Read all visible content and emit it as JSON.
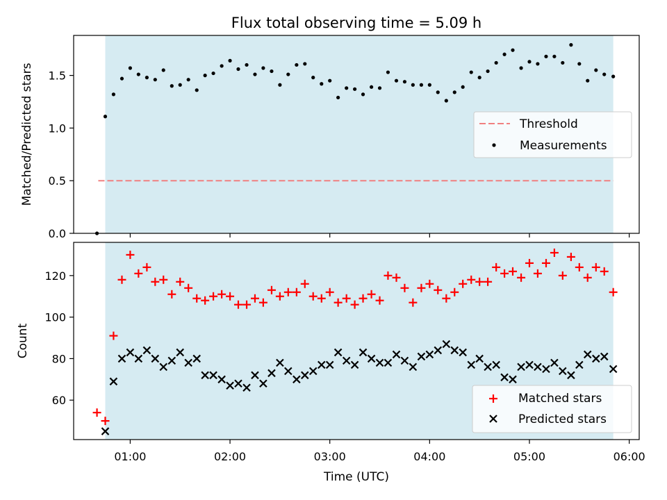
{
  "chart_data": [
    {
      "type": "scatter",
      "title": "Flux total observing time = 5.09 h",
      "xlabel": "",
      "ylabel": "Matched/Predicted stars",
      "xlim_hours": [
        0.4333,
        6.1
      ],
      "ylim": [
        0.0,
        1.88
      ],
      "y_ticks": [
        0.0,
        0.5,
        1.0,
        1.5
      ],
      "y_tick_labels": [
        "0.0",
        "0.5",
        "1.0",
        "1.5"
      ],
      "x_ticks_hours": [
        1,
        2,
        3,
        4,
        5,
        6
      ],
      "shaded_span_hours": [
        0.75,
        5.84
      ],
      "shade_color": "#add8e6",
      "grid": false,
      "legend_position": "center-right",
      "legend": [
        {
          "label": "Threshold",
          "marker": "dashed-line",
          "color": "#f08080"
        },
        {
          "label": "Measurements",
          "marker": "dot",
          "color": "#000000"
        }
      ],
      "threshold": {
        "name": "Threshold",
        "value": 0.5,
        "x_range_hours": [
          0.68,
          5.84
        ]
      },
      "series": [
        {
          "name": "Measurements",
          "color": "#000000",
          "x_hours": [
            0.667,
            0.75,
            0.833,
            0.917,
            1.0,
            1.083,
            1.167,
            1.25,
            1.333,
            1.417,
            1.5,
            1.583,
            1.667,
            1.75,
            1.833,
            1.917,
            2.0,
            2.083,
            2.167,
            2.25,
            2.333,
            2.417,
            2.5,
            2.583,
            2.667,
            2.75,
            2.833,
            2.917,
            3.0,
            3.083,
            3.167,
            3.25,
            3.333,
            3.417,
            3.5,
            3.583,
            3.667,
            3.75,
            3.833,
            3.917,
            4.0,
            4.083,
            4.167,
            4.25,
            4.333,
            4.417,
            4.5,
            4.583,
            4.667,
            4.75,
            4.833,
            4.917,
            5.0,
            5.083,
            5.167,
            5.25,
            5.333,
            5.417,
            5.5,
            5.583,
            5.667,
            5.75,
            5.84
          ],
          "values": [
            0.0,
            1.11,
            1.32,
            1.47,
            1.57,
            1.51,
            1.48,
            1.46,
            1.55,
            1.4,
            1.41,
            1.46,
            1.36,
            1.5,
            1.52,
            1.59,
            1.64,
            1.56,
            1.6,
            1.51,
            1.57,
            1.54,
            1.41,
            1.51,
            1.6,
            1.61,
            1.48,
            1.42,
            1.45,
            1.29,
            1.38,
            1.37,
            1.32,
            1.39,
            1.38,
            1.53,
            1.45,
            1.44,
            1.41,
            1.41,
            1.41,
            1.34,
            1.26,
            1.34,
            1.39,
            1.53,
            1.48,
            1.54,
            1.62,
            1.7,
            1.74,
            1.57,
            1.63,
            1.61,
            1.68,
            1.68,
            1.62,
            1.79,
            1.61,
            1.45,
            1.55,
            1.51,
            1.49
          ]
        }
      ]
    },
    {
      "type": "scatter",
      "title": "",
      "xlabel": "Time (UTC)",
      "ylabel": "Count",
      "xlim_hours": [
        0.4333,
        6.1
      ],
      "ylim": [
        41,
        136
      ],
      "y_ticks": [
        60,
        80,
        100,
        120
      ],
      "y_tick_labels": [
        "60",
        "80",
        "100",
        "120"
      ],
      "x_ticks_hours": [
        1,
        2,
        3,
        4,
        5,
        6
      ],
      "x_tick_labels": [
        "01:00",
        "02:00",
        "03:00",
        "04:00",
        "05:00",
        "06:00"
      ],
      "shaded_span_hours": [
        0.75,
        5.84
      ],
      "shade_color": "#add8e6",
      "grid": false,
      "legend_position": "bottom-right",
      "legend": [
        {
          "label": "Matched stars",
          "marker": "plus",
          "color": "#ff0000"
        },
        {
          "label": "Predicted stars",
          "marker": "x",
          "color": "#000000"
        }
      ],
      "series": [
        {
          "name": "Matched stars",
          "color": "#ff0000",
          "x_hours": [
            0.667,
            0.75,
            0.833,
            0.917,
            1.0,
            1.083,
            1.167,
            1.25,
            1.333,
            1.417,
            1.5,
            1.583,
            1.667,
            1.75,
            1.833,
            1.917,
            2.0,
            2.083,
            2.167,
            2.25,
            2.333,
            2.417,
            2.5,
            2.583,
            2.667,
            2.75,
            2.833,
            2.917,
            3.0,
            3.083,
            3.167,
            3.25,
            3.333,
            3.417,
            3.5,
            3.583,
            3.667,
            3.75,
            3.833,
            3.917,
            4.0,
            4.083,
            4.167,
            4.25,
            4.333,
            4.417,
            4.5,
            4.583,
            4.667,
            4.75,
            4.833,
            4.917,
            5.0,
            5.083,
            5.167,
            5.25,
            5.333,
            5.417,
            5.5,
            5.583,
            5.667,
            5.75,
            5.84
          ],
          "values": [
            54,
            50,
            91,
            118,
            130,
            121,
            124,
            117,
            118,
            111,
            117,
            114,
            109,
            108,
            110,
            111,
            110,
            106,
            106,
            109,
            107,
            113,
            110,
            112,
            112,
            116,
            110,
            109,
            112,
            107,
            109,
            106,
            109,
            111,
            108,
            120,
            119,
            114,
            107,
            114,
            116,
            113,
            109,
            112,
            116,
            118,
            117,
            117,
            124,
            121,
            122,
            119,
            126,
            121,
            126,
            131,
            120,
            129,
            124,
            119,
            124,
            122,
            112
          ]
        },
        {
          "name": "Predicted stars",
          "color": "#000000",
          "x_hours": [
            0.75,
            0.833,
            0.917,
            1.0,
            1.083,
            1.167,
            1.25,
            1.333,
            1.417,
            1.5,
            1.583,
            1.667,
            1.75,
            1.833,
            1.917,
            2.0,
            2.083,
            2.167,
            2.25,
            2.333,
            2.417,
            2.5,
            2.583,
            2.667,
            2.75,
            2.833,
            2.917,
            3.0,
            3.083,
            3.167,
            3.25,
            3.333,
            3.417,
            3.5,
            3.583,
            3.667,
            3.75,
            3.833,
            3.917,
            4.0,
            4.083,
            4.167,
            4.25,
            4.333,
            4.417,
            4.5,
            4.583,
            4.667,
            4.75,
            4.833,
            4.917,
            5.0,
            5.083,
            5.167,
            5.25,
            5.333,
            5.417,
            5.5,
            5.583,
            5.667,
            5.75,
            5.84
          ],
          "values": [
            45,
            69,
            80,
            83,
            80,
            84,
            80,
            76,
            79,
            83,
            78,
            80,
            72,
            72,
            70,
            67,
            68,
            66,
            72,
            68,
            73,
            78,
            74,
            70,
            72,
            74,
            77,
            77,
            83,
            79,
            77,
            83,
            80,
            78,
            78,
            82,
            79,
            76,
            81,
            82,
            84,
            87,
            84,
            83,
            77,
            80,
            76,
            77,
            71,
            70,
            76,
            77,
            76,
            75,
            78,
            74,
            72,
            77,
            82,
            80,
            81,
            75
          ]
        }
      ]
    }
  ]
}
